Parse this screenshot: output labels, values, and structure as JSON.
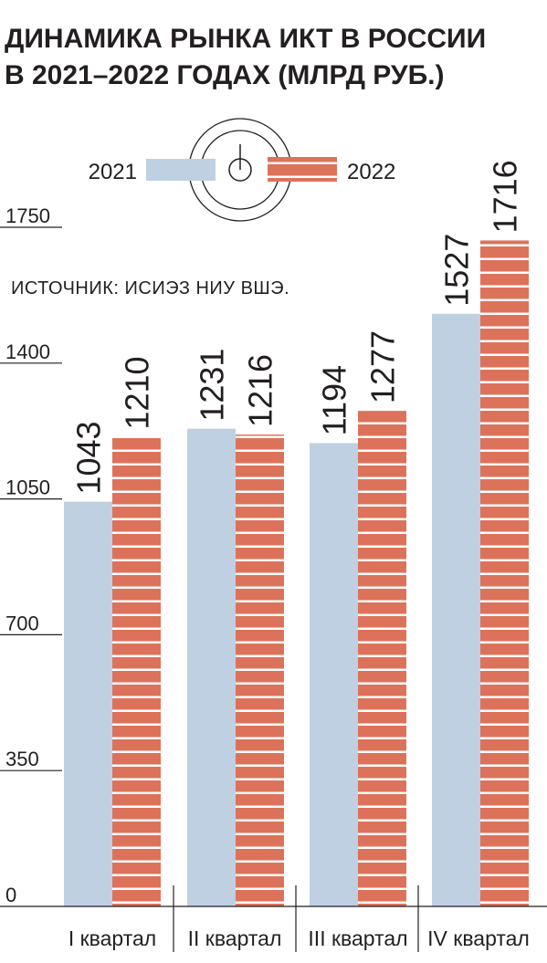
{
  "chart_data": {
    "type": "bar",
    "title_lines": [
      "ДИНАМИКА РЫНКА ИКТ В РОССИИ",
      "В 2021–2022 ГОДАХ (МЛРД РУБ.)"
    ],
    "source": "ИСТОЧНИК: ИСИЭЗ НИУ ВШЭ.",
    "categories": [
      "I квартал",
      "II квартал",
      "III квартал",
      "IV квартал"
    ],
    "series": [
      {
        "name": "2021",
        "values": [
          1043,
          1231,
          1194,
          1527
        ],
        "color": "#bfd0e2"
      },
      {
        "name": "2022",
        "values": [
          1210,
          1216,
          1277,
          1716
        ],
        "color": "#dd725a",
        "stripe_color": "#ffffff"
      }
    ],
    "value_labels": [
      [
        "1043",
        "1231",
        "1194",
        "1527"
      ],
      [
        "1210",
        "1216",
        "1277",
        "1716"
      ]
    ],
    "yticks": [
      0,
      350,
      700,
      1050,
      1400,
      1750
    ],
    "ytick_labels": [
      "0",
      "350",
      "700",
      "1050",
      "1400",
      "1750"
    ],
    "ylim": [
      0,
      1750
    ],
    "legend_placement": "top-center",
    "grid": false
  }
}
